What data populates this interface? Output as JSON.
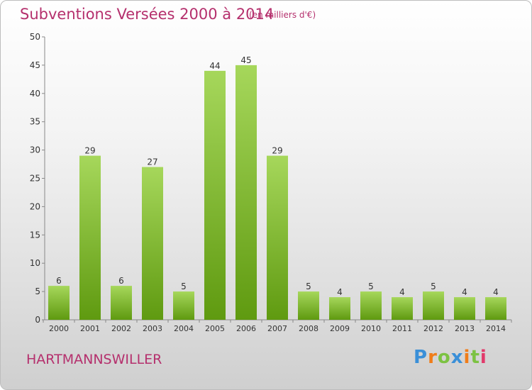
{
  "title": "Subventions Versées 2000 à 2014",
  "subtitle": "(en milliers d'€)",
  "commune": "HARTMANNSWILLER",
  "logo": {
    "letters": [
      "P",
      "r",
      "o",
      "x",
      "i",
      "t",
      "i"
    ],
    "colors": [
      "#3a8fd8",
      "#f07d19",
      "#7cc242",
      "#3a8fd8",
      "#f07d19",
      "#7cc242",
      "#e23a6b"
    ]
  },
  "colors": {
    "bar_top": "#a6d75b",
    "bar_bottom": "#5f9a10",
    "title": "#b5306d"
  },
  "chart_data": {
    "type": "bar",
    "title": "Subventions Versées 2000 à 2014",
    "subtitle": "(en milliers d'€)",
    "categories": [
      "2000",
      "2001",
      "2002",
      "2003",
      "2004",
      "2005",
      "2006",
      "2007",
      "2008",
      "2009",
      "2010",
      "2011",
      "2012",
      "2013",
      "2014"
    ],
    "values": [
      6,
      29,
      6,
      27,
      5,
      44,
      45,
      29,
      5,
      4,
      5,
      4,
      5,
      4,
      4
    ],
    "ylim": [
      0,
      50
    ],
    "yticks": [
      0,
      5,
      10,
      15,
      20,
      25,
      30,
      35,
      40,
      45,
      50
    ],
    "grid": false,
    "data_labels": true
  }
}
